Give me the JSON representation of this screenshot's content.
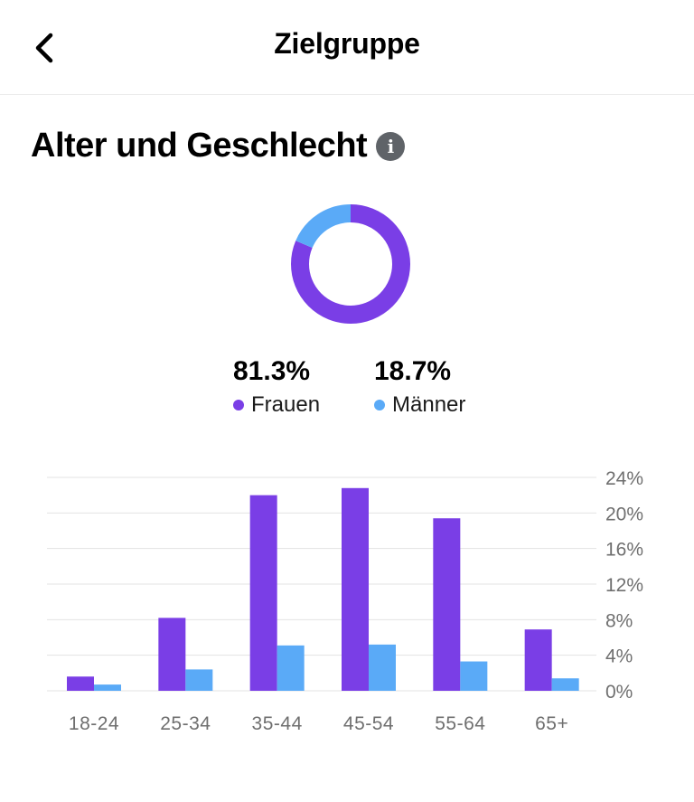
{
  "header": {
    "title": "Zielgruppe"
  },
  "section": {
    "title": "Alter und Geschlecht"
  },
  "colors": {
    "women": "#7a3ee6",
    "men": "#5aaaf7",
    "grid": "#e3e3e3",
    "axis_text": "#6f6f6f",
    "info": "#5f6368"
  },
  "gender": [
    {
      "label": "Frauen",
      "percent": 81.3,
      "display": "81.3%"
    },
    {
      "label": "Männer",
      "percent": 18.7,
      "display": "18.7%"
    }
  ],
  "chart_data": {
    "type": "bar",
    "categories": [
      "18-24",
      "25-34",
      "35-44",
      "45-54",
      "55-64",
      "65+"
    ],
    "series": [
      {
        "name": "Frauen",
        "values": [
          1.6,
          8.2,
          22.0,
          22.8,
          19.4,
          6.9
        ]
      },
      {
        "name": "Männer",
        "values": [
          0.7,
          2.4,
          5.1,
          5.2,
          3.3,
          1.4
        ]
      }
    ],
    "yticks": [
      "0%",
      "4%",
      "8%",
      "12%",
      "16%",
      "20%",
      "24%"
    ],
    "ylim": [
      0,
      24
    ],
    "grid": true,
    "ylabel": "",
    "xlabel": "",
    "yaxis_position": "right"
  }
}
